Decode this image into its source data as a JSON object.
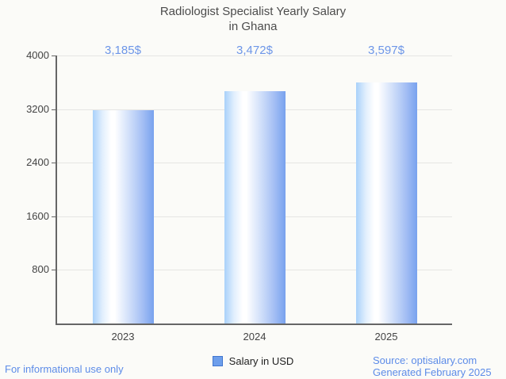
{
  "title": {
    "line1": "Radiologist Specialist Yearly Salary",
    "line2": "in Ghana"
  },
  "chart_data": {
    "type": "bar",
    "title": "Radiologist Specialist Yearly Salary in Ghana",
    "categories": [
      "2023",
      "2024",
      "2025"
    ],
    "values": [
      3185,
      3472,
      3597
    ],
    "value_labels": [
      "3,185$",
      "3,472$",
      "3,597$"
    ],
    "series_name": "Salary in USD",
    "xlabel": "",
    "ylabel": "",
    "ylim": [
      0,
      4000
    ],
    "yticks": [
      800,
      1600,
      2400,
      3200,
      4000
    ],
    "grid": true,
    "legend_position": "bottom",
    "bar_gradient": {
      "left": "#a9d1fa",
      "mid": "#ffffff",
      "right": "#78a2ee"
    }
  },
  "legend": {
    "label": "Salary in USD",
    "marker_color": "#6d9eeb",
    "marker_border": "#4176cf"
  },
  "footer": {
    "left": "For informational use only",
    "source": "Source: optisalary.com",
    "generated": "Generated February 2025"
  },
  "colors": {
    "accent_text": "#6d96e8",
    "title_text": "#4c4c4c",
    "axis_text": "#434343",
    "grid_line": "#e5e5e3",
    "axis_line": "#666666",
    "background": "#fbfbf8"
  }
}
